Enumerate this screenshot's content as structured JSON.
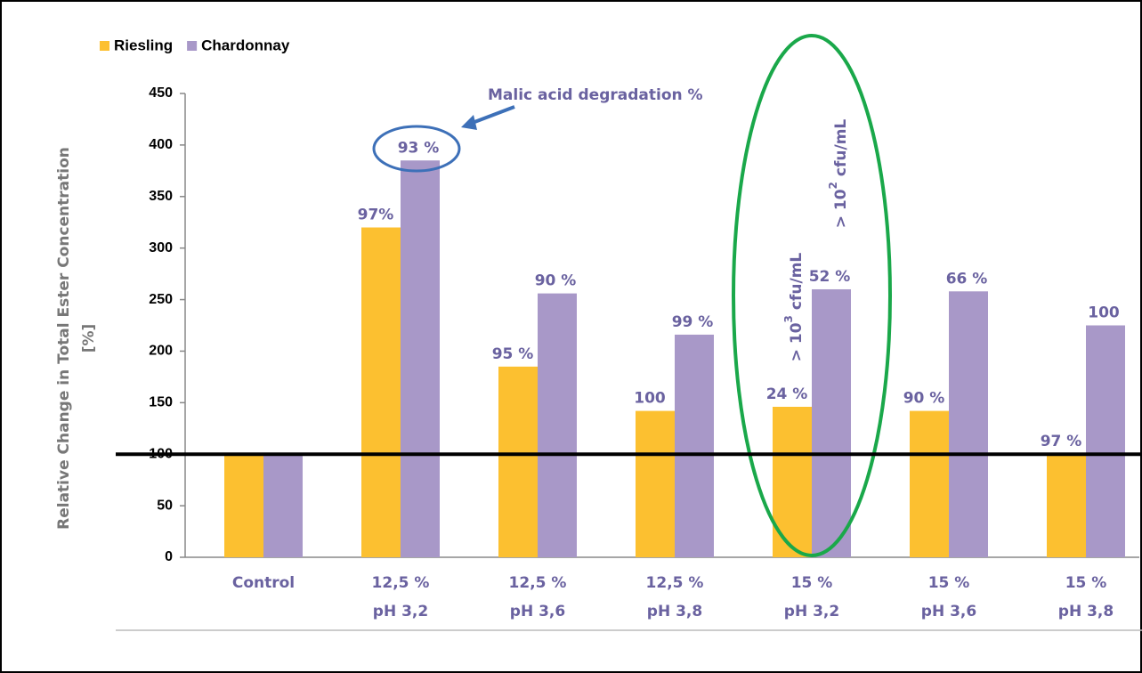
{
  "chart_data": {
    "type": "bar",
    "y_axis_label": [
      "Relative Change in Total Ester Concentration",
      "[%]"
    ],
    "categories": [
      [
        "Control"
      ],
      [
        "12,5 %",
        "pH 3,2"
      ],
      [
        "12,5 %",
        "pH 3,6"
      ],
      [
        "12,5 %",
        "pH 3,8"
      ],
      [
        "15 %",
        "pH 3,2"
      ],
      [
        "15 %",
        "pH 3,6"
      ],
      [
        "15 %",
        "pH 3,8"
      ]
    ],
    "series": [
      {
        "name": "Riesling",
        "color": "#fcc030",
        "values": [
          100,
          320,
          185,
          142,
          146,
          142,
          100
        ],
        "degradation_labels": [
          null,
          "97%",
          "95 %",
          "100",
          "24 %",
          "90 %",
          "97 %"
        ]
      },
      {
        "name": "Chardonnay",
        "color": "#a898c8",
        "values": [
          100,
          385,
          256,
          216,
          260,
          258,
          225
        ],
        "degradation_labels": [
          null,
          "93 %",
          "90 %",
          "99 %",
          "52 %",
          "66 %",
          "100"
        ]
      }
    ],
    "ylim": [
      0,
      450
    ],
    "yticks": [
      0,
      50,
      100,
      150,
      200,
      250,
      300,
      350,
      400,
      450
    ],
    "reference_line": 100,
    "legend": "top-left",
    "annotations": {
      "malic": "Malic acid degradation %",
      "cfu3": {
        "base": "> 10",
        "exp": "3",
        "unit": "cfu/mL"
      },
      "cfu2": {
        "base": "> 10",
        "exp": "2",
        "unit": "cfu/mL"
      }
    }
  }
}
